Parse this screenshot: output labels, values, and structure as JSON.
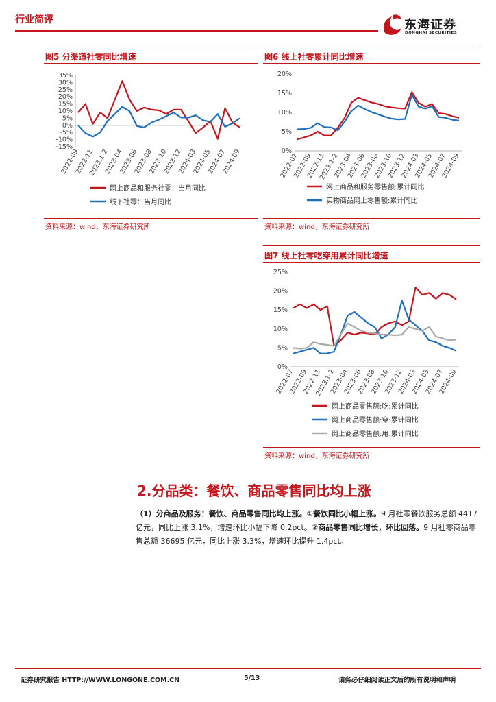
{
  "header": {
    "title": "行业简评",
    "logo_cn": "东海证券",
    "logo_en": "DONGHAI SECURITIES"
  },
  "fig5": {
    "label": "图5 分渠道社零同比增速",
    "source": "资料来源：wind，东海证券研究所"
  },
  "fig6": {
    "label": "图6 线上社零累计同比增速",
    "source": "资料来源：wind，东海证券研究所"
  },
  "fig7": {
    "label": "图7 线上社零吃穿用累计同比增速",
    "source": "资料来源：wind，东海证券研究所"
  },
  "section": {
    "heading": "2.分品类：餐饮、商品零售同比均上涨"
  },
  "paragraph": {
    "p1": "（1）分商品及服务：餐饮、商品零售同比均上涨。①餐饮同比小幅上涨。",
    "p2": "9 月社零餐饮服务总额 4417 亿元，同比上涨 3.1%，增速环比小幅下降 0.2pct。",
    "p3": "②商品零售同比增长，环比回落。",
    "p4": "9 月社零商品零售总额 36695 亿元，同比上涨 3.3%，增速环比提升 1.4pct。"
  },
  "footer": {
    "left": "证券研究报告 HTTP://WWW.LONGONE.COM.CN",
    "page": "5/13",
    "right": "请务必仔细阅读正文后的所有说明和声明"
  },
  "colors": {
    "red": "#c4161c",
    "blue": "#1f6fbf",
    "gray": "#aaaaaa"
  },
  "chart_data": [
    {
      "type": "line",
      "x_ticks": [
        "2022-09",
        "2022-11",
        "2023.1-2",
        "2023-04",
        "2023-06",
        "2023-08",
        "2023-10",
        "2023-12",
        "2024-03",
        "2024-05",
        "2024-07",
        "2024-09"
      ],
      "ylim": [
        -15,
        35
      ],
      "y_ticks": [
        "35%",
        "30%",
        "25%",
        "20%",
        "15%",
        "10%",
        "5%",
        "0%",
        "-5%",
        "-10%",
        "-15%"
      ],
      "series": [
        {
          "name": "网上商品和服务社零：当月同比",
          "color": "#c4161c",
          "values": [
            9,
            15,
            1,
            9,
            5,
            18,
            31,
            18,
            10,
            12.5,
            11,
            10.5,
            8,
            11,
            11,
            3,
            -5.5,
            -1.5,
            3,
            -9.5,
            12,
            2,
            -1.5
          ]
        },
        {
          "name": "线下社零：当月同比",
          "color": "#1f6fbf",
          "values": [
            0,
            -5.5,
            -8,
            -5,
            3,
            8,
            13,
            10,
            -0.5,
            -1.5,
            2,
            4,
            6.5,
            9,
            5.5,
            5.5,
            7,
            3.5,
            2.5,
            8,
            -1,
            1.5,
            5
          ]
        }
      ]
    },
    {
      "type": "line",
      "x_ticks": [
        "2022-07",
        "2022-09",
        "2022-11",
        "2023.1-2",
        "2023-04",
        "2023-06",
        "2023-08",
        "2023-10",
        "2023-12",
        "2024-03",
        "2024-05",
        "2024-07",
        "2024-09"
      ],
      "ylim": [
        0,
        20
      ],
      "y_ticks": [
        "20%",
        "15%",
        "10%",
        "5%",
        "0%"
      ],
      "series": [
        {
          "name": "网上商品和服务零售额:累计同比",
          "color": "#c4161c",
          "values": [
            3,
            3.5,
            4,
            5,
            4,
            4,
            6,
            8.5,
            12.5,
            13.8,
            13.2,
            12.6,
            12.2,
            11.6,
            11.3,
            11.1,
            11,
            15.3,
            12.5,
            11.5,
            12.2,
            9.8,
            9.6,
            9,
            8.6
          ]
        },
        {
          "name": "实物商品网上零售额:累计同比",
          "color": "#1f6fbf",
          "values": [
            5.6,
            5.7,
            6,
            7.2,
            6.2,
            6.1,
            5.3,
            7.5,
            10.3,
            11.8,
            10.9,
            10.1,
            9.5,
            8.9,
            8.4,
            8.2,
            8.3,
            14.6,
            11.5,
            11,
            11.6,
            8.8,
            8.6,
            8.1,
            7.9
          ]
        }
      ]
    },
    {
      "type": "line",
      "x_ticks": [
        "2022-07",
        "2022-09",
        "2022-11",
        "2023.1-2",
        "2023-04",
        "2023-06",
        "2023-08",
        "2023-10",
        "2023-12",
        "2024-03",
        "2024-05",
        "2024-07",
        "2024-09"
      ],
      "ylim": [
        0,
        25
      ],
      "y_ticks": [
        "25%",
        "20%",
        "15%",
        "10%",
        "5%",
        "0%"
      ],
      "series": [
        {
          "name": "网上商品零售额:吃:累计同比",
          "color": "#c4161c",
          "values": [
            15.5,
            16.5,
            15.5,
            16.5,
            15,
            16,
            5.5,
            7,
            9,
            8.5,
            9,
            8.8,
            8.5,
            10.5,
            11.5,
            12,
            11,
            12,
            21,
            19,
            19.5,
            18,
            19.5,
            19,
            17.8
          ]
        },
        {
          "name": "网上商品零售额:穿:累计同比",
          "color": "#1f6fbf",
          "values": [
            3.5,
            4,
            4.5,
            5,
            3.5,
            3.5,
            4,
            8.5,
            13.5,
            14.5,
            13,
            11.5,
            10.5,
            7.5,
            8.5,
            10.5,
            17.5,
            12.5,
            11,
            9.5,
            7,
            6.5,
            5.5,
            5,
            4.2
          ]
        },
        {
          "name": "网上商品零售额:用:累计同比",
          "color": "#aaaaaa",
          "values": [
            5,
            4.8,
            5,
            6.5,
            6,
            5.8,
            5.5,
            8.5,
            11.5,
            10.5,
            9.5,
            9,
            8.8,
            8.5,
            8.5,
            8.3,
            8.5,
            10.5,
            10,
            9.5,
            10.5,
            8,
            7.5,
            7,
            7.2
          ]
        }
      ]
    }
  ]
}
